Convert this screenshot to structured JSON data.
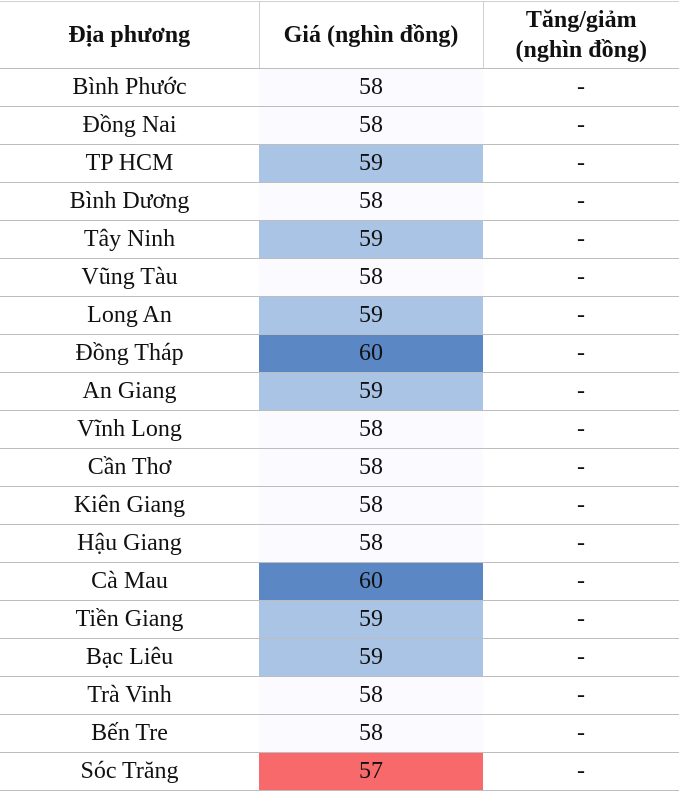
{
  "headers": [
    "Địa phương",
    "Giá (nghìn đồng)",
    "Tăng/giảm (nghìn đồng)"
  ],
  "colors": {
    "58": "#fafaff",
    "59": "#a9c4e4",
    "60": "#5b87c5",
    "57": "#f8696b"
  },
  "rows": [
    {
      "region": "Bình Phước",
      "price": "58",
      "change": "-"
    },
    {
      "region": "Đồng Nai",
      "price": "58",
      "change": "-"
    },
    {
      "region": "TP HCM",
      "price": "59",
      "change": "-"
    },
    {
      "region": "Bình Dương",
      "price": "58",
      "change": "-"
    },
    {
      "region": "Tây Ninh",
      "price": "59",
      "change": "-"
    },
    {
      "region": "Vũng Tàu",
      "price": "58",
      "change": "-"
    },
    {
      "region": "Long An",
      "price": "59",
      "change": "-"
    },
    {
      "region": "Đồng Tháp",
      "price": "60",
      "change": "-"
    },
    {
      "region": "An Giang",
      "price": "59",
      "change": "-"
    },
    {
      "region": "Vĩnh Long",
      "price": "58",
      "change": "-"
    },
    {
      "region": "Cần Thơ",
      "price": "58",
      "change": "-"
    },
    {
      "region": "Kiên Giang",
      "price": "58",
      "change": "-"
    },
    {
      "region": "Hậu Giang",
      "price": "58",
      "change": "-"
    },
    {
      "region": "Cà Mau",
      "price": "60",
      "change": "-"
    },
    {
      "region": "Tiền Giang",
      "price": "59",
      "change": "-"
    },
    {
      "region": "Bạc Liêu",
      "price": "59",
      "change": "-"
    },
    {
      "region": "Trà Vinh",
      "price": "58",
      "change": "-"
    },
    {
      "region": "Bến Tre",
      "price": "58",
      "change": "-"
    },
    {
      "region": "Sóc Trăng",
      "price": "57",
      "change": "-"
    }
  ]
}
